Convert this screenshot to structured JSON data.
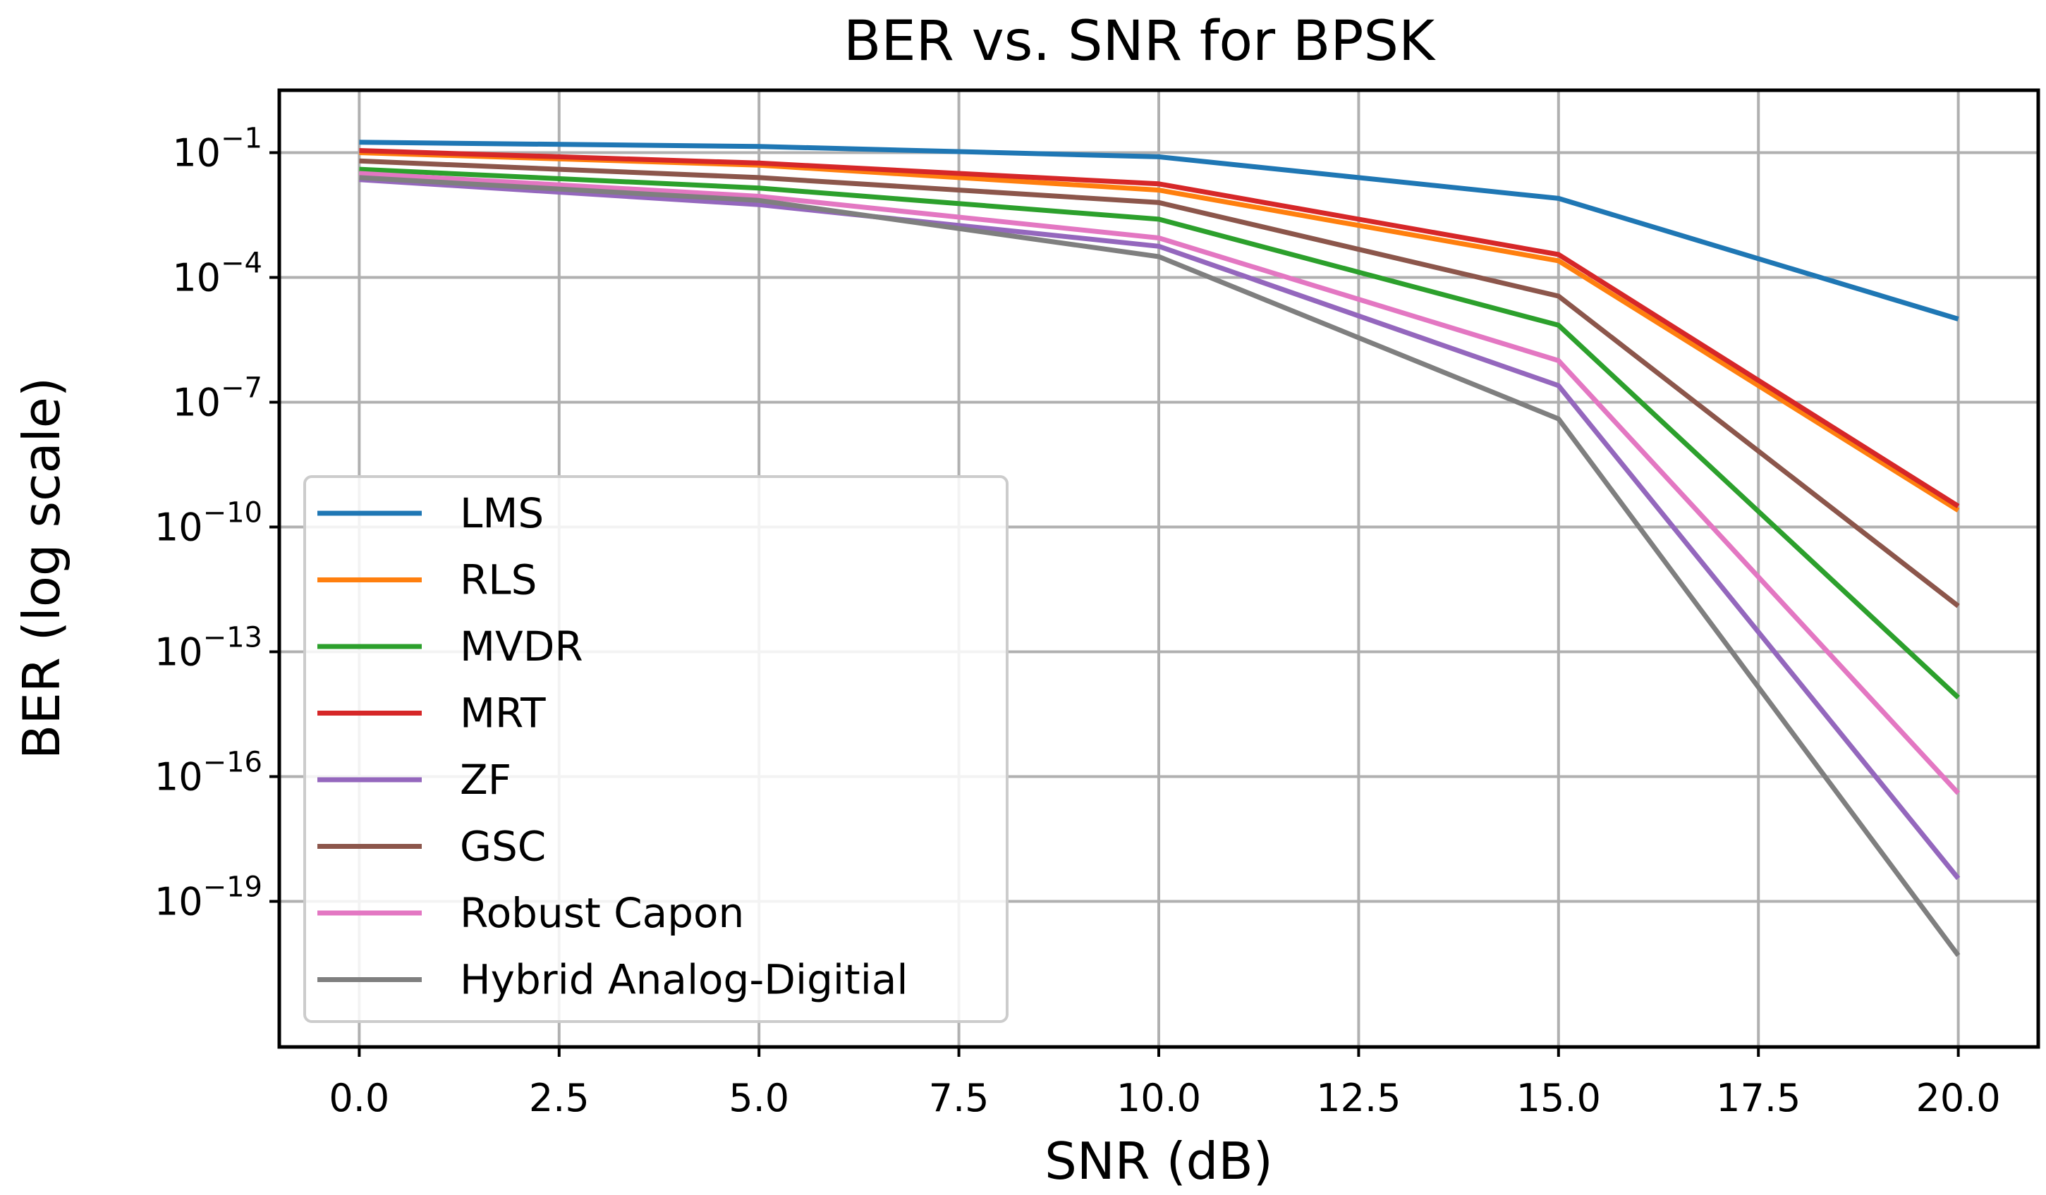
{
  "chart_data": {
    "type": "line",
    "title": "BER vs. SNR for BPSK",
    "xlabel": "SNR (dB)",
    "ylabel": "BER (log scale)",
    "yscale": "log",
    "xlim": [
      -1,
      21
    ],
    "ylim_exp": [
      -22.5,
      0.5
    ],
    "grid": true,
    "legend_position": "lower-left",
    "x": [
      0,
      5,
      10,
      15,
      20
    ],
    "x_ticks": [
      {
        "value": 0,
        "label": "0.0"
      },
      {
        "value": 2.5,
        "label": "2.5"
      },
      {
        "value": 5,
        "label": "5.0"
      },
      {
        "value": 7.5,
        "label": "7.5"
      },
      {
        "value": 10,
        "label": "10.0"
      },
      {
        "value": 12.5,
        "label": "12.5"
      },
      {
        "value": 15,
        "label": "15.0"
      },
      {
        "value": 17.5,
        "label": "17.5"
      },
      {
        "value": 20,
        "label": "20.0"
      }
    ],
    "y_ticks": [
      {
        "exp": -1,
        "base": "10",
        "sup": "−1"
      },
      {
        "exp": -4,
        "base": "10",
        "sup": "−4"
      },
      {
        "exp": -7,
        "base": "10",
        "sup": "−7"
      },
      {
        "exp": -10,
        "base": "10",
        "sup": "−10"
      },
      {
        "exp": -13,
        "base": "10",
        "sup": "−13"
      },
      {
        "exp": -16,
        "base": "10",
        "sup": "−16"
      },
      {
        "exp": -19,
        "base": "10",
        "sup": "−19"
      }
    ],
    "series": [
      {
        "name": "LMS",
        "color": "#1f77b4",
        "log10_values": [
          -0.75,
          -0.85,
          -1.1,
          -2.1,
          -5.0
        ]
      },
      {
        "name": "RLS",
        "color": "#ff7f0e",
        "log10_values": [
          -1.0,
          -1.3,
          -1.9,
          -3.6,
          -9.6
        ]
      },
      {
        "name": "MVDR",
        "color": "#2ca02c",
        "log10_values": [
          -1.4,
          -1.85,
          -2.6,
          -5.15,
          -14.1
        ]
      },
      {
        "name": "MRT",
        "color": "#d62728",
        "log10_values": [
          -0.95,
          -1.25,
          -1.75,
          -3.45,
          -9.5
        ]
      },
      {
        "name": "ZF",
        "color": "#9467bd",
        "log10_values": [
          -1.65,
          -2.25,
          -3.25,
          -6.6,
          -18.45
        ]
      },
      {
        "name": "GSC",
        "color": "#8c564b",
        "log10_values": [
          -1.2,
          -1.6,
          -2.2,
          -4.45,
          -11.9
        ]
      },
      {
        "name": "Robust Capon",
        "color": "#e377c2",
        "log10_values": [
          -1.5,
          -2.05,
          -3.05,
          -6.0,
          -16.4
        ]
      },
      {
        "name": "Hybrid Analog-Digitial",
        "color": "#7f7f7f",
        "log10_values": [
          -1.6,
          -2.15,
          -3.5,
          -7.4,
          -20.3
        ]
      }
    ]
  }
}
